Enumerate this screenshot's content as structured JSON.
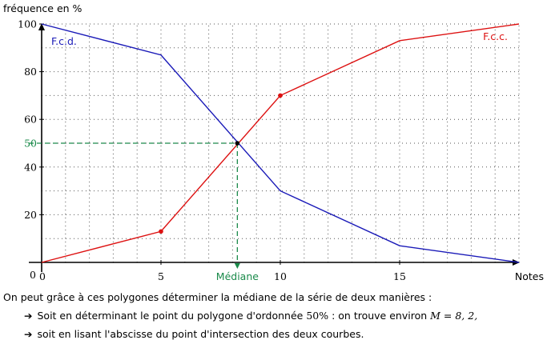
{
  "chart_data": {
    "type": "line",
    "ylabel": "fréquence en %",
    "xlabel": "Notes",
    "xlim": [
      0,
      20
    ],
    "ylim": [
      0,
      100
    ],
    "grid": true,
    "x_ticks": [
      0,
      5,
      10,
      15
    ],
    "y_ticks": [
      0,
      20,
      40,
      60,
      80,
      100
    ],
    "series": [
      {
        "name": "F.c.d.",
        "color": "#1a1ab8",
        "x": [
          0,
          5,
          10,
          15,
          20
        ],
        "y": [
          100,
          87,
          30,
          7,
          0
        ]
      },
      {
        "name": "F.c.c.",
        "color": "#dd1111",
        "x": [
          0,
          5,
          10,
          15,
          20
        ],
        "y": [
          0,
          13,
          70,
          93,
          100
        ]
      }
    ],
    "marked_points": [
      {
        "x": 5,
        "y": 13,
        "color": "#dd1111"
      },
      {
        "x": 10,
        "y": 70,
        "color": "#dd1111"
      },
      {
        "x": 8.2,
        "y": 50,
        "color": "#000000"
      }
    ],
    "median": {
      "x": 8.2,
      "y": 50,
      "x_label": "Médiane",
      "y_label": "50",
      "color": "#1a8a4a"
    }
  },
  "text": {
    "intro": "On peut grâce à ces polygones déterminer la médiane de la série de deux manières :",
    "bullet1_before": "Soit en déterminant le point du polygone d'ordonnée ",
    "bullet1_pct": "50%",
    "bullet1_middle": " : on trouve environ ",
    "bullet1_math": "M = 8, 2,",
    "bullet2": "soit en lisant l'abscisse du point d'intersection des deux courbes.",
    "arrow": "➔"
  }
}
